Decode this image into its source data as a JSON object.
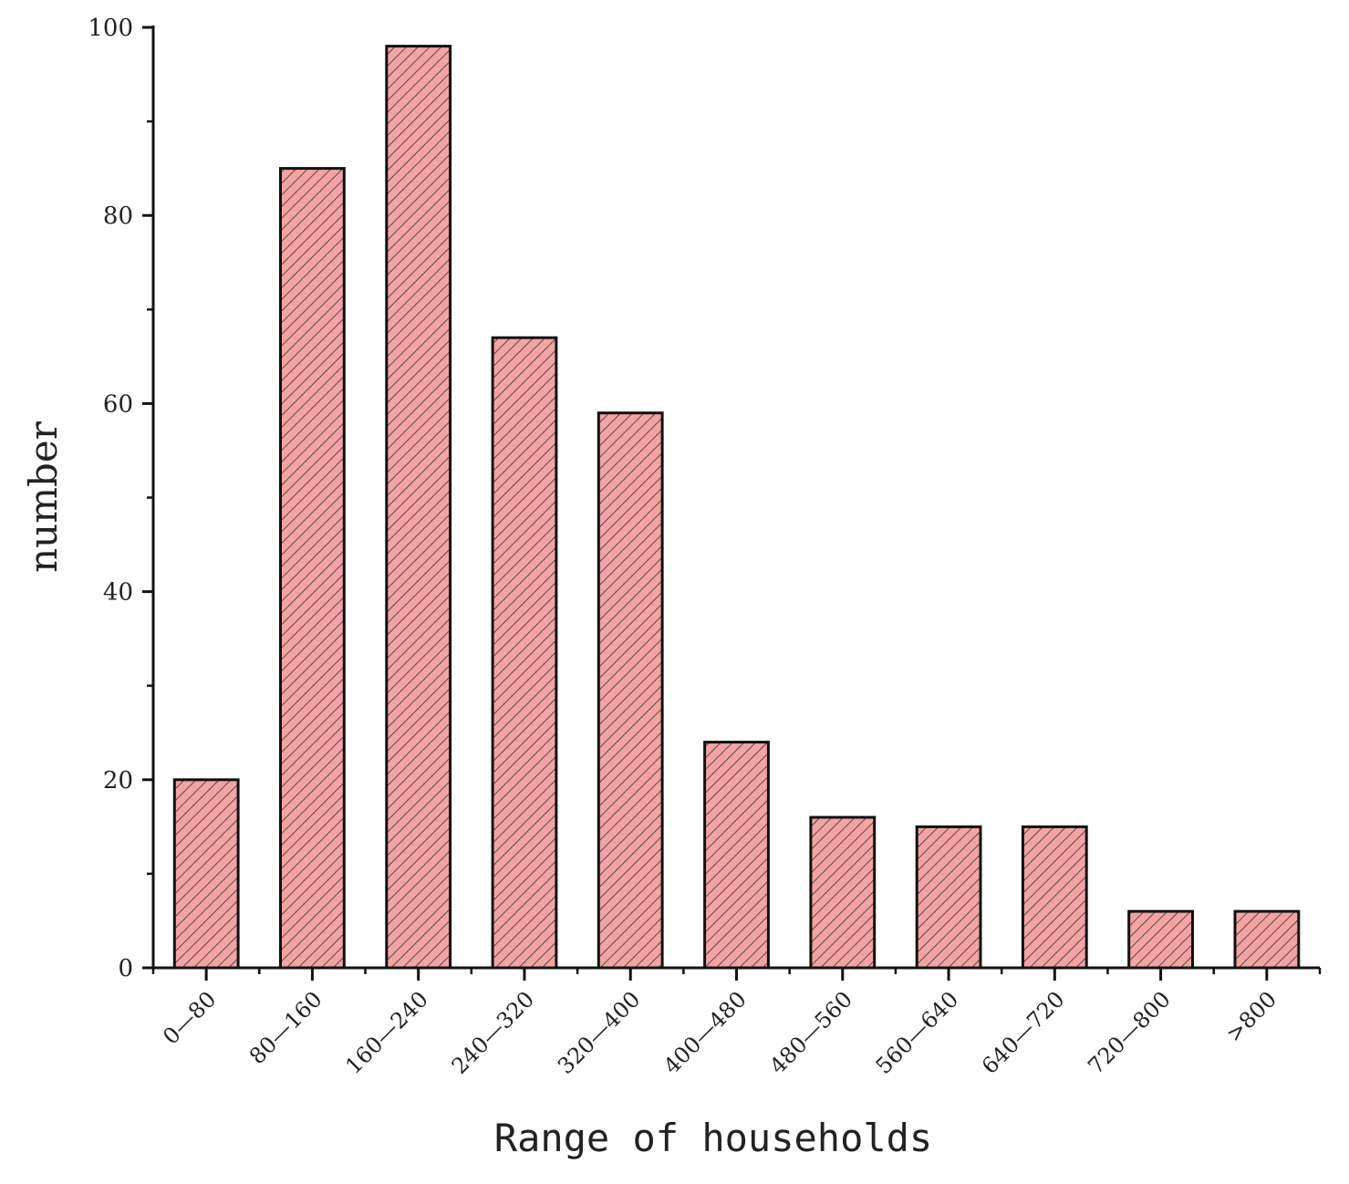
{
  "chart_data": {
    "type": "bar",
    "title": "",
    "xlabel": "Range of households",
    "ylabel": "number",
    "categories": [
      "0—80",
      "80—160",
      "160—240",
      "240—320",
      "320—400",
      "400—480",
      "480—560",
      "560—640",
      "640—720",
      "720—800",
      ">800"
    ],
    "values": [
      20,
      85,
      98,
      67,
      59,
      24,
      16,
      15,
      15,
      6,
      6
    ],
    "ylim": [
      0,
      100
    ],
    "yticks": [
      0,
      20,
      40,
      60,
      80,
      100
    ],
    "yminor_step": 10,
    "grid": false,
    "legend": "none",
    "bar_fill": "#f4a3a3",
    "bar_hatch": "diagonal",
    "bar_stroke": "#111111"
  }
}
